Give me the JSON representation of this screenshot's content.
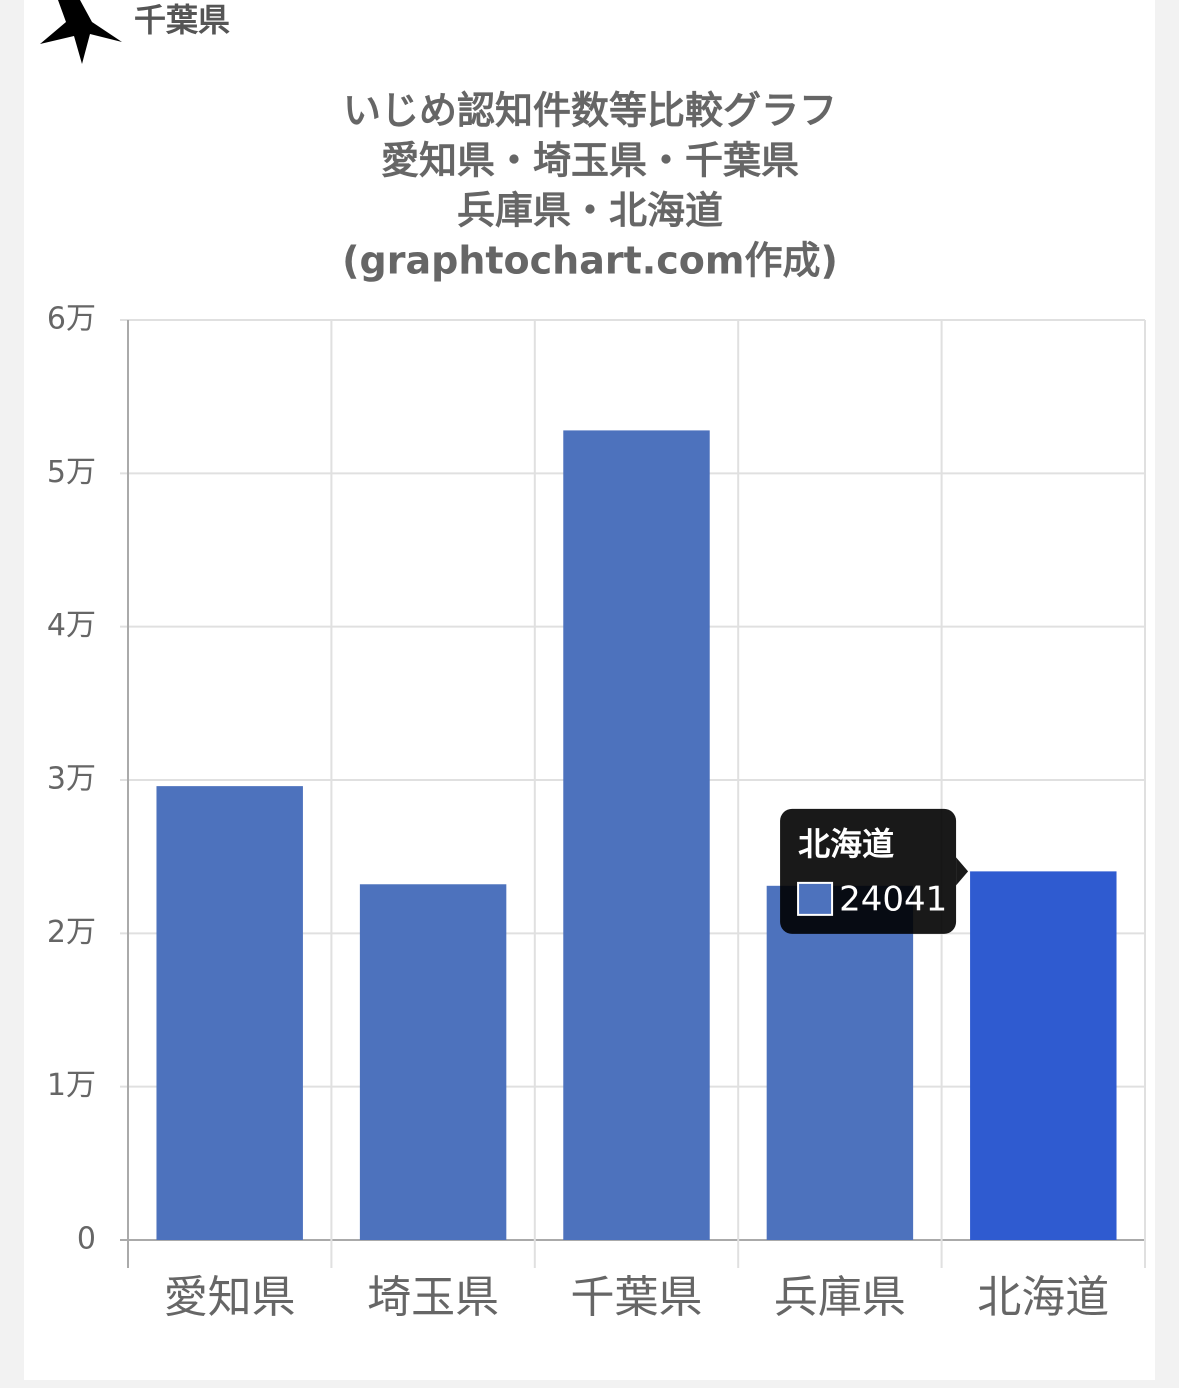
{
  "header_label": "千葉県",
  "chart_data": {
    "type": "bar",
    "title": [
      "いじめ認知件数等比較グラフ",
      "愛知県・埼玉県・千葉県",
      "兵庫県・北海道",
      "(graphtochart.com作成)"
    ],
    "categories": [
      "愛知県",
      "埼玉県",
      "千葉県",
      "兵庫県",
      "北海道"
    ],
    "values": [
      29600,
      23200,
      52800,
      23100,
      24041
    ],
    "color": "#4d72bd",
    "highlight_color": "#2f5bd0",
    "active_index": 4,
    "ylim": [
      0,
      60000
    ],
    "yticks": [
      0,
      {
        "value": 10000,
        "label": "1万"
      },
      {
        "value": 20000,
        "label": "2万"
      },
      {
        "value": 30000,
        "label": "3万"
      },
      {
        "value": 40000,
        "label": "4万"
      },
      {
        "value": 50000,
        "label": "5万"
      },
      {
        "value": 60000,
        "label": "6万"
      }
    ],
    "grid": true
  }
}
